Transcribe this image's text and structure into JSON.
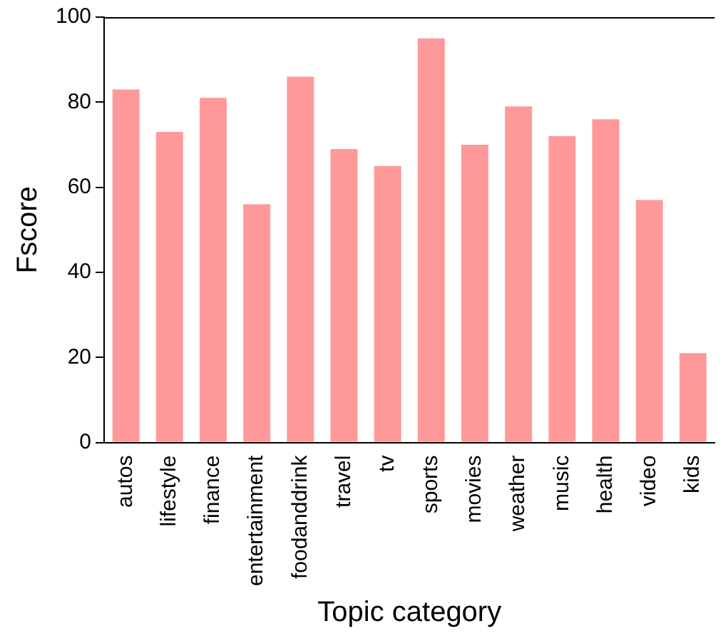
{
  "chart_data": {
    "type": "bar",
    "xlabel": "Topic category",
    "ylabel": "Fscore",
    "categories": [
      "autos",
      "lifestyle",
      "finance",
      "entertainment",
      "foodanddrink",
      "travel",
      "tv",
      "sports",
      "movies",
      "weather",
      "music",
      "health",
      "video",
      "kids"
    ],
    "values": [
      83,
      73,
      81,
      56,
      86,
      69,
      65,
      95,
      70,
      79,
      72,
      76,
      57,
      21
    ],
    "color": "#ff9999",
    "ylim": [
      0,
      100
    ],
    "yticks": [
      0,
      20,
      40,
      60,
      80,
      100
    ],
    "grid": false,
    "legend": false
  }
}
